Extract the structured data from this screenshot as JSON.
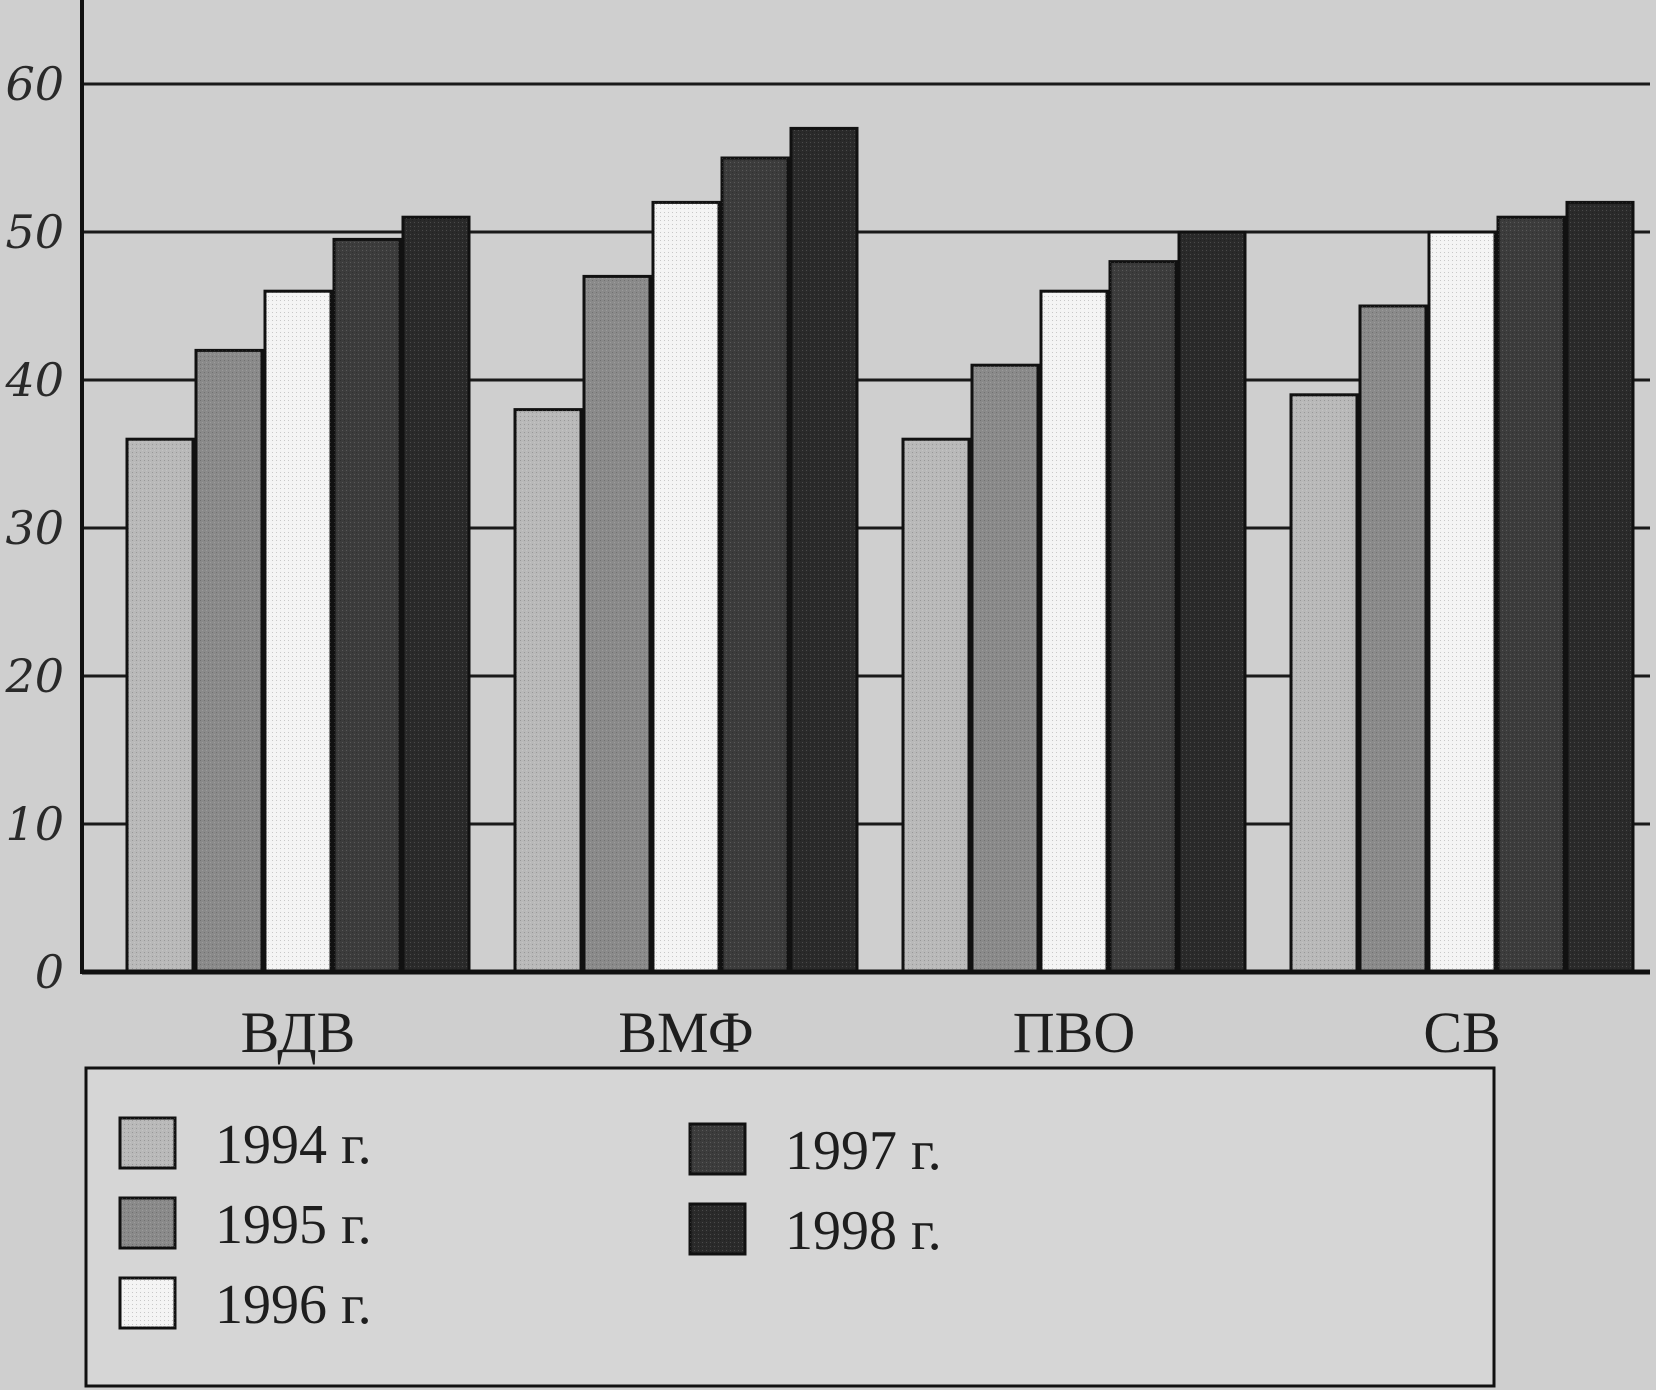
{
  "chart_data": {
    "type": "bar",
    "title": "",
    "xlabel": "",
    "ylabel": "",
    "ylim": [
      0,
      65
    ],
    "yticks": [
      0,
      10,
      20,
      30,
      40,
      50,
      60
    ],
    "grid": true,
    "legend_position": "bottom",
    "categories": [
      "ВДВ",
      "ВМФ",
      "ПВО",
      "СВ"
    ],
    "series": [
      {
        "name": "1994 г.",
        "color": "#b9b9b9",
        "values": [
          36,
          38,
          36,
          39
        ]
      },
      {
        "name": "1995 г.",
        "color": "#8a8a8a",
        "values": [
          42,
          47,
          41,
          45
        ]
      },
      {
        "name": "1996 г.",
        "color": "#f4f4f4",
        "values": [
          46,
          52,
          46,
          50
        ]
      },
      {
        "name": "1997 г.",
        "color": "#3c3c3c",
        "values": [
          49.5,
          55,
          48,
          51
        ]
      },
      {
        "name": "1998 г.",
        "color": "#2a2a2a",
        "values": [
          51,
          57,
          50,
          52
        ]
      }
    ]
  }
}
